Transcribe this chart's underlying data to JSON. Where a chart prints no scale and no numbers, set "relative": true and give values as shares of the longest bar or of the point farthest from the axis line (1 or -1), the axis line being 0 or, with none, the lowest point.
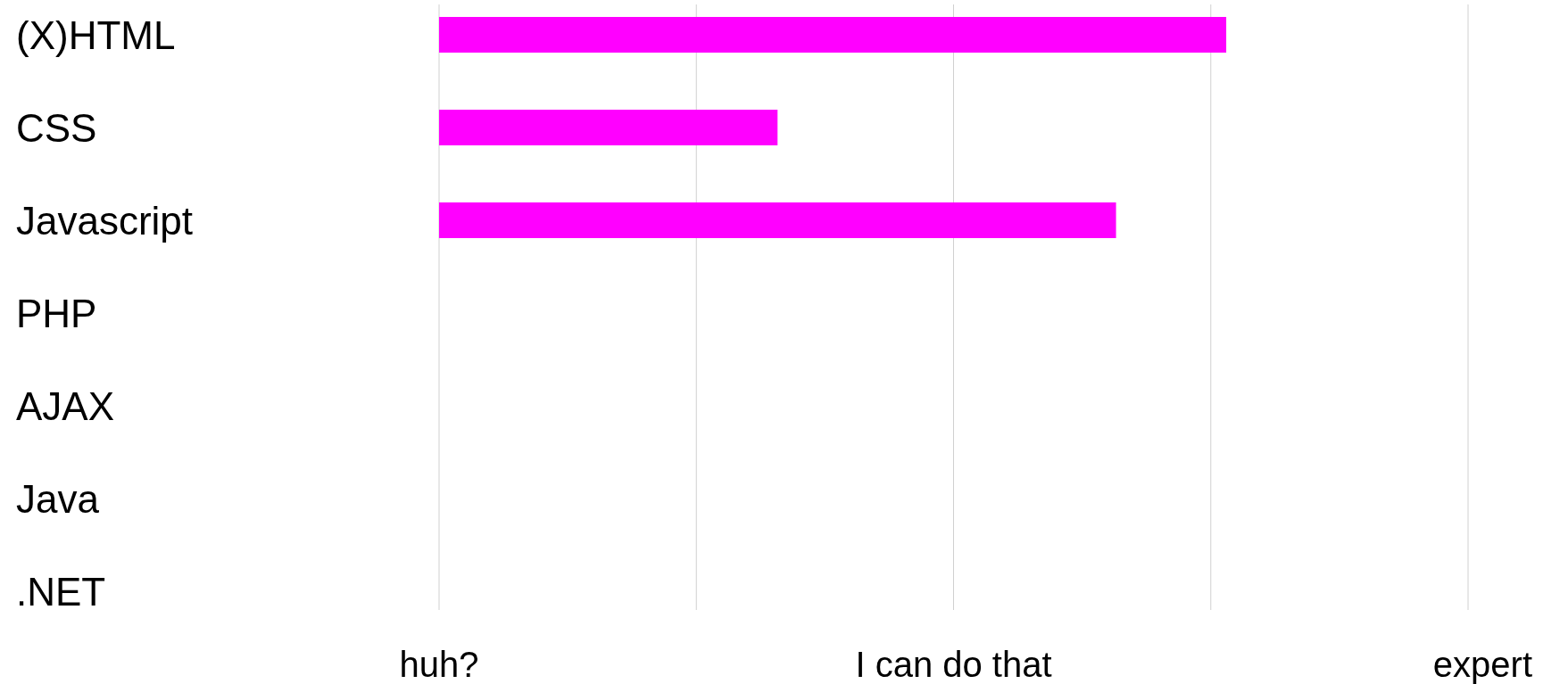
{
  "chart_data": {
    "type": "bar",
    "orientation": "horizontal",
    "relative": true,
    "categories": [
      "(X)HTML",
      "CSS",
      "Javascript",
      "PHP",
      "AJAX",
      "Java",
      ".NET"
    ],
    "values": [
      1,
      0.43,
      0.86,
      0,
      0,
      0,
      0
    ],
    "color": "#ff00ff",
    "annotations": [
      "huh?",
      "I can do that",
      "expert"
    ],
    "grid": "x"
  }
}
